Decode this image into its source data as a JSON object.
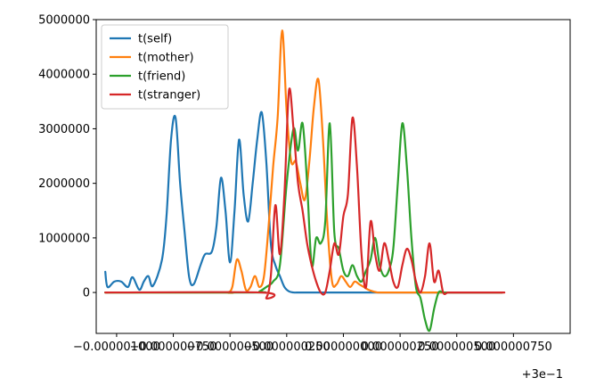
{
  "chart_data": {
    "type": "line",
    "title": "",
    "xlabel": "",
    "ylabel": "",
    "x_offset_text": "+3e−1",
    "xlim": [
      -1.09e-06,
      1e-06
    ],
    "ylim": [
      -750000,
      5000000
    ],
    "x_ticks": [
      {
        "value": -1e-06,
        "label": "−0.000001000"
      },
      {
        "value": -7.5e-07,
        "label": "−0.000000750"
      },
      {
        "value": -5e-07,
        "label": "−0.000000500"
      },
      {
        "value": -2.5e-07,
        "label": "−0.000000250"
      },
      {
        "value": 0.0,
        "label": "0.000000000"
      },
      {
        "value": 2.5e-07,
        "label": "0.000000250"
      },
      {
        "value": 5e-07,
        "label": "0.000000500"
      },
      {
        "value": 7.5e-07,
        "label": "0.000000750"
      }
    ],
    "y_ticks": [
      {
        "value": 0,
        "label": "0"
      },
      {
        "value": 1000000,
        "label": "1000000"
      },
      {
        "value": 2000000,
        "label": "2000000"
      },
      {
        "value": 3000000,
        "label": "3000000"
      },
      {
        "value": 4000000,
        "label": "4000000"
      },
      {
        "value": 5000000,
        "label": "5000000"
      }
    ],
    "grid": false,
    "legend_position": "top-left",
    "series": [
      {
        "name": "t(self)",
        "color": "#1f77b4",
        "x": [
          -1.05e-06,
          -1.04e-06,
          -1.01e-06,
          -9.8e-07,
          -9.5e-07,
          -9.3e-07,
          -9e-07,
          -8.8e-07,
          -8.6e-07,
          -8.4e-07,
          -8e-07,
          -7.8e-07,
          -7.6e-07,
          -7.4e-07,
          -7.2e-07,
          -7e-07,
          -6.8e-07,
          -6.6e-07,
          -6.3e-07,
          -6.1e-07,
          -5.8e-07,
          -5.6e-07,
          -5.4e-07,
          -5.2e-07,
          -5e-07,
          -4.8e-07,
          -4.6e-07,
          -4.4e-07,
          -4.2e-07,
          -4e-07,
          -3.8e-07,
          -3.6e-07,
          -3.4e-07,
          -3.2e-07,
          -3e-07,
          -2.8e-07,
          -2.6e-07,
          -2.4e-07,
          -2.2e-07,
          -2e-07,
          -1.8e-07,
          -1.6e-07,
          -1.4e-07,
          -1.2e-07,
          -1e-07,
          -8e-08,
          -6e-08,
          -4e-08,
          -2e-08,
          0.0,
          2e-07,
          5e-07,
          7e-07
        ],
        "y": [
          380000,
          100000,
          200000,
          200000,
          100000,
          280000,
          50000,
          200000,
          300000,
          120000,
          600000,
          1400000,
          2800000,
          3200000,
          2000000,
          1100000,
          280000,
          150000,
          500000,
          700000,
          750000,
          1200000,
          2100000,
          1500000,
          550000,
          1500000,
          2800000,
          1800000,
          1300000,
          2000000,
          2800000,
          3300000,
          2400000,
          900000,
          500000,
          300000,
          100000,
          20000,
          0,
          0,
          0,
          0,
          0,
          0,
          0,
          0,
          0,
          0,
          0,
          0,
          0,
          0,
          0
        ]
      },
      {
        "name": "t(mother)",
        "color": "#ff7f0e",
        "x": [
          -1.05e-06,
          -5.3e-07,
          -5.1e-07,
          -4.9e-07,
          -4.7e-07,
          -4.5e-07,
          -4.3e-07,
          -4.1e-07,
          -3.9e-07,
          -3.7e-07,
          -3.5e-07,
          -3.3e-07,
          -3.1e-07,
          -2.9e-07,
          -2.7e-07,
          -2.5e-07,
          -2.3e-07,
          -2.1e-07,
          -1.9e-07,
          -1.7e-07,
          -1.5e-07,
          -1.3e-07,
          -1.1e-07,
          -9e-08,
          -7e-08,
          -5e-08,
          -3e-08,
          -1e-08,
          1e-08,
          3e-08,
          5e-08,
          7e-08,
          9e-08,
          1.1e-07,
          1.3e-07,
          1.5e-07,
          1.7e-07,
          1.9e-07,
          2.1e-07,
          2.3e-07,
          2.5e-07,
          2.7e-07,
          2.9e-07,
          3.1e-07,
          3.4e-07,
          7e-07
        ],
        "y": [
          0,
          0,
          0,
          100000,
          600000,
          400000,
          50000,
          100000,
          300000,
          100000,
          300000,
          1200000,
          2300000,
          3200000,
          4800000,
          3300000,
          2400000,
          2400000,
          2000000,
          1700000,
          2400000,
          3400000,
          3900000,
          2800000,
          1200000,
          200000,
          150000,
          300000,
          200000,
          100000,
          200000,
          150000,
          100000,
          50000,
          20000,
          0,
          0,
          0,
          0,
          0,
          0,
          0,
          0,
          0,
          0,
          0
        ]
      },
      {
        "name": "t(friend)",
        "color": "#2ca02c",
        "x": [
          -1.05e-06,
          -4e-07,
          -3.7e-07,
          -3.4e-07,
          -3.1e-07,
          -2.8e-07,
          -2.5e-07,
          -2.2e-07,
          -2e-07,
          -1.8e-07,
          -1.6e-07,
          -1.4e-07,
          -1.2e-07,
          -1e-07,
          -8e-08,
          -6e-08,
          -4e-08,
          -2e-08,
          0.0,
          2e-08,
          4e-08,
          6e-08,
          8e-08,
          1e-07,
          1.2e-07,
          1.4e-07,
          1.6e-07,
          1.8e-07,
          2e-07,
          2.2e-07,
          2.4e-07,
          2.6e-07,
          2.8e-07,
          3e-07,
          3.2e-07,
          3.4e-07,
          3.6e-07,
          3.8e-07,
          4e-07,
          4.2e-07,
          4.4e-07,
          4.6e-07,
          4.8e-07,
          5e-07,
          5.2e-07,
          5.4e-07,
          5.6e-07,
          5.8e-07,
          6e-07,
          6.2e-07,
          6.4e-07,
          6.6e-07,
          6.8e-07,
          7e-07
        ],
        "y": [
          0,
          0,
          20000,
          100000,
          200000,
          500000,
          2000000,
          3000000,
          2600000,
          3100000,
          2000000,
          500000,
          1000000,
          900000,
          1300000,
          3100000,
          1100000,
          800000,
          400000,
          300000,
          500000,
          300000,
          200000,
          400000,
          600000,
          1000000,
          500000,
          300000,
          400000,
          800000,
          2000000,
          3100000,
          2300000,
          1000000,
          100000,
          -100000,
          -500000,
          -700000,
          -300000,
          0,
          0,
          0,
          0,
          0,
          0,
          0,
          0,
          0,
          0,
          0,
          0,
          0,
          0,
          0
        ]
      },
      {
        "name": "t(stranger)",
        "color": "#d62728",
        "x": [
          -1.05e-06,
          -3.6e-07,
          -3.4e-07,
          -3.2e-07,
          -3e-07,
          -2.8e-07,
          -2.6e-07,
          -2.4e-07,
          -2.2e-07,
          -2e-07,
          -1.8e-07,
          -1.6e-07,
          -1.4e-07,
          -1.2e-07,
          -1e-07,
          -8e-08,
          -6e-08,
          -4e-08,
          -2e-08,
          0.0,
          2e-08,
          4e-08,
          6e-08,
          8e-08,
          1e-07,
          1.2e-07,
          1.4e-07,
          1.6e-07,
          1.8e-07,
          2e-07,
          2.2e-07,
          2.4e-07,
          2.6e-07,
          2.8e-07,
          3e-07,
          3.2e-07,
          3.4e-07,
          3.6e-07,
          3.8e-07,
          4e-07,
          4.2e-07,
          4.4e-07,
          4.6e-07,
          4.8e-07,
          5e-07,
          5.2e-07,
          5.4e-07,
          5.6e-07,
          5.8e-07,
          6e-07,
          6.2e-07,
          6.4e-07,
          6.6e-07,
          6.8e-07,
          7e-07,
          7.1e-07
        ],
        "y": [
          0,
          0,
          -100000,
          300000,
          1600000,
          700000,
          1800000,
          3700000,
          3000000,
          2000000,
          1500000,
          900000,
          500000,
          200000,
          0,
          0,
          400000,
          900000,
          700000,
          1400000,
          1800000,
          3200000,
          2300000,
          700000,
          100000,
          1300000,
          700000,
          400000,
          900000,
          600000,
          200000,
          100000,
          500000,
          800000,
          600000,
          200000,
          0,
          300000,
          900000,
          200000,
          400000,
          0,
          0,
          0,
          0,
          0,
          0,
          0,
          0,
          0,
          0,
          0,
          0,
          0,
          0,
          0
        ]
      }
    ]
  }
}
